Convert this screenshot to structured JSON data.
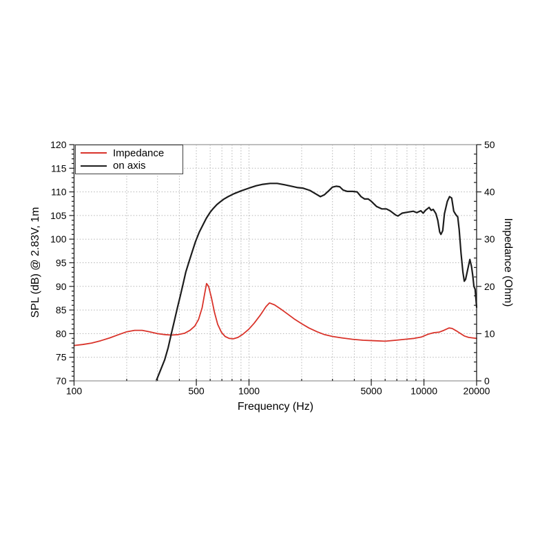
{
  "figure": {
    "background": "#ffffff"
  },
  "chart_data": {
    "type": "line",
    "title": "",
    "x_scale": "log",
    "xlabel": "Frequency (Hz)",
    "ylabel_left": "SPL (dB) @ 2.83V, 1m",
    "ylabel_right": "Impedance (Ohm)",
    "xlim": [
      100,
      20000
    ],
    "ylim_left": [
      70,
      120
    ],
    "ylim_right": [
      0,
      50
    ],
    "x_ticks": [
      100,
      500,
      1000,
      5000,
      10000,
      20000
    ],
    "x_tick_labels": [
      "100",
      "500",
      "1000",
      "5000",
      "10000",
      "20000"
    ],
    "y_ticks_left": [
      70,
      75,
      80,
      85,
      90,
      95,
      100,
      105,
      110,
      115,
      120
    ],
    "y_ticks_right": [
      0,
      10,
      20,
      30,
      40,
      50
    ],
    "grid": true,
    "grid_style": "dotted",
    "legend_position": "upper-left",
    "colors": {
      "grid": "#b3b3b3",
      "axis_dark": "#1a1a1a",
      "axis_light": "#a8a8a8",
      "impedance": "#d93229",
      "on_axis": "#1c1c1c"
    },
    "series": [
      {
        "name": "Impedance",
        "axis": "right",
        "unit": "Ohm",
        "color": "#d93229",
        "points": [
          [
            100,
            7.5
          ],
          [
            112,
            7.7
          ],
          [
            126,
            8.0
          ],
          [
            142,
            8.5
          ],
          [
            160,
            9.1
          ],
          [
            180,
            9.8
          ],
          [
            200,
            10.4
          ],
          [
            222,
            10.7
          ],
          [
            245,
            10.7
          ],
          [
            270,
            10.4
          ],
          [
            300,
            10.0
          ],
          [
            330,
            9.8
          ],
          [
            360,
            9.7
          ],
          [
            395,
            9.8
          ],
          [
            430,
            10.1
          ],
          [
            460,
            10.7
          ],
          [
            490,
            11.6
          ],
          [
            515,
            13.0
          ],
          [
            540,
            15.5
          ],
          [
            558,
            18.5
          ],
          [
            572,
            20.6
          ],
          [
            588,
            20.0
          ],
          [
            610,
            17.6
          ],
          [
            635,
            14.5
          ],
          [
            662,
            12.0
          ],
          [
            695,
            10.3
          ],
          [
            730,
            9.4
          ],
          [
            770,
            9.0
          ],
          [
            815,
            8.9
          ],
          [
            865,
            9.2
          ],
          [
            925,
            9.9
          ],
          [
            995,
            10.9
          ],
          [
            1070,
            12.2
          ],
          [
            1160,
            13.9
          ],
          [
            1250,
            15.7
          ],
          [
            1310,
            16.5
          ],
          [
            1400,
            16.1
          ],
          [
            1520,
            15.2
          ],
          [
            1670,
            14.1
          ],
          [
            1830,
            13.0
          ],
          [
            2000,
            12.1
          ],
          [
            2200,
            11.2
          ],
          [
            2450,
            10.4
          ],
          [
            2700,
            9.8
          ],
          [
            3000,
            9.4
          ],
          [
            3400,
            9.1
          ],
          [
            3900,
            8.8
          ],
          [
            4500,
            8.6
          ],
          [
            5200,
            8.5
          ],
          [
            6000,
            8.4
          ],
          [
            6900,
            8.6
          ],
          [
            7800,
            8.8
          ],
          [
            8800,
            9.0
          ],
          [
            9700,
            9.3
          ],
          [
            10600,
            9.9
          ],
          [
            11400,
            10.2
          ],
          [
            12200,
            10.3
          ],
          [
            13000,
            10.7
          ],
          [
            13900,
            11.2
          ],
          [
            14500,
            11.1
          ],
          [
            15300,
            10.6
          ],
          [
            16200,
            10.0
          ],
          [
            17000,
            9.5
          ],
          [
            18000,
            9.2
          ],
          [
            19000,
            9.1
          ],
          [
            20000,
            9.0
          ]
        ]
      },
      {
        "name": "on axis",
        "axis": "left",
        "unit": "dB SPL",
        "color": "#1c1c1c",
        "points": [
          [
            295,
            70.0
          ],
          [
            310,
            72.0
          ],
          [
            330,
            74.5
          ],
          [
            345,
            77.0
          ],
          [
            360,
            80.0
          ],
          [
            375,
            82.8
          ],
          [
            390,
            85.5
          ],
          [
            405,
            88.0
          ],
          [
            420,
            90.5
          ],
          [
            435,
            93.0
          ],
          [
            455,
            95.3
          ],
          [
            475,
            97.5
          ],
          [
            495,
            99.5
          ],
          [
            520,
            101.5
          ],
          [
            545,
            103.0
          ],
          [
            570,
            104.4
          ],
          [
            600,
            105.7
          ],
          [
            625,
            106.5
          ],
          [
            655,
            107.3
          ],
          [
            685,
            107.9
          ],
          [
            720,
            108.5
          ],
          [
            760,
            109.0
          ],
          [
            820,
            109.6
          ],
          [
            900,
            110.2
          ],
          [
            1000,
            110.8
          ],
          [
            1100,
            111.3
          ],
          [
            1200,
            111.6
          ],
          [
            1320,
            111.8
          ],
          [
            1450,
            111.8
          ],
          [
            1600,
            111.5
          ],
          [
            1750,
            111.2
          ],
          [
            1900,
            110.9
          ],
          [
            2030,
            110.8
          ],
          [
            2230,
            110.3
          ],
          [
            2400,
            109.6
          ],
          [
            2560,
            109.0
          ],
          [
            2700,
            109.4
          ],
          [
            2850,
            110.2
          ],
          [
            3000,
            111.0
          ],
          [
            3150,
            111.2
          ],
          [
            3300,
            111.1
          ],
          [
            3450,
            110.4
          ],
          [
            3650,
            110.1
          ],
          [
            3900,
            110.1
          ],
          [
            4150,
            110.0
          ],
          [
            4370,
            109.0
          ],
          [
            4580,
            108.5
          ],
          [
            4800,
            108.5
          ],
          [
            5000,
            108.0
          ],
          [
            5370,
            106.9
          ],
          [
            5740,
            106.4
          ],
          [
            6100,
            106.4
          ],
          [
            6400,
            106.0
          ],
          [
            6900,
            105.1
          ],
          [
            7100,
            104.9
          ],
          [
            7500,
            105.5
          ],
          [
            8050,
            105.7
          ],
          [
            8700,
            105.9
          ],
          [
            9100,
            105.6
          ],
          [
            9600,
            106.0
          ],
          [
            9900,
            105.5
          ],
          [
            10200,
            106.1
          ],
          [
            10700,
            106.7
          ],
          [
            11000,
            106.1
          ],
          [
            11300,
            106.3
          ],
          [
            11700,
            105.4
          ],
          [
            12000,
            104.0
          ],
          [
            12300,
            101.5
          ],
          [
            12500,
            101.0
          ],
          [
            12800,
            101.8
          ],
          [
            13100,
            105.4
          ],
          [
            13600,
            108.0
          ],
          [
            14000,
            109.0
          ],
          [
            14400,
            108.7
          ],
          [
            14800,
            105.9
          ],
          [
            15200,
            105.2
          ],
          [
            15600,
            104.7
          ],
          [
            15900,
            102.0
          ],
          [
            16300,
            97.0
          ],
          [
            16700,
            93.0
          ],
          [
            17000,
            91.1
          ],
          [
            17300,
            91.5
          ],
          [
            17800,
            93.6
          ],
          [
            18300,
            95.7
          ],
          [
            18700,
            94.2
          ],
          [
            19000,
            92.4
          ],
          [
            19300,
            90.0
          ],
          [
            19600,
            89.4
          ],
          [
            20000,
            85.6
          ]
        ]
      }
    ]
  }
}
